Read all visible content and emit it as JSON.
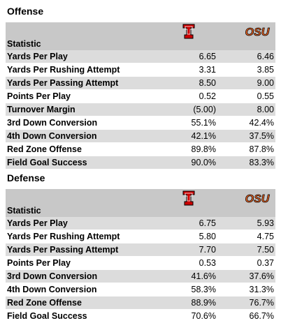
{
  "offense": {
    "title": "Offense",
    "header_label": "Statistic",
    "rows": [
      {
        "label": "Yards Per Play",
        "tt": "6.65",
        "osu": "6.46"
      },
      {
        "label": "Yards Per Rushing Attempt",
        "tt": "3.31",
        "osu": "3.85"
      },
      {
        "label": "Yards Per Passing Attempt",
        "tt": "8.50",
        "osu": "9.00"
      },
      {
        "label": "Points Per Play",
        "tt": "0.52",
        "osu": "0.55"
      },
      {
        "label": "Turnover Margin",
        "tt": "(5.00)",
        "osu": "8.00"
      },
      {
        "label": "3rd Down Conversion",
        "tt": "55.1%",
        "osu": "42.4%"
      },
      {
        "label": "4th Down Conversion",
        "tt": "42.1%",
        "osu": "37.5%"
      },
      {
        "label": "Red Zone Offense",
        "tt": "89.8%",
        "osu": "87.8%"
      },
      {
        "label": "Field Goal Success",
        "tt": "90.0%",
        "osu": "83.3%"
      }
    ]
  },
  "defense": {
    "title": "Defense",
    "header_label": "Statistic",
    "rows": [
      {
        "label": "Yards Per Play",
        "tt": "6.75",
        "osu": "5.93"
      },
      {
        "label": "Yards Per Rushing Attempt",
        "tt": "5.80",
        "osu": "4.75"
      },
      {
        "label": "Yards Per Passing Attempt",
        "tt": "7.70",
        "osu": "7.50"
      },
      {
        "label": "Points Per Play",
        "tt": "0.53",
        "osu": "0.37"
      },
      {
        "label": "3rd Down Conversion",
        "tt": "41.6%",
        "osu": "37.6%"
      },
      {
        "label": "4th Down Conversion",
        "tt": "58.3%",
        "osu": "31.3%"
      },
      {
        "label": "Red Zone Offense",
        "tt": "88.9%",
        "osu": "76.7%"
      },
      {
        "label": "Field Goal Success",
        "tt": "70.6%",
        "osu": "66.7%"
      }
    ]
  },
  "logos": {
    "team1": {
      "icon": "texas-tech-double-t-icon",
      "color": "#cc0000",
      "outline": "#000000"
    },
    "team2": {
      "icon": "oklahoma-state-osu-icon",
      "text": "OSU",
      "color": "#f26522",
      "outline": "#000000"
    }
  }
}
